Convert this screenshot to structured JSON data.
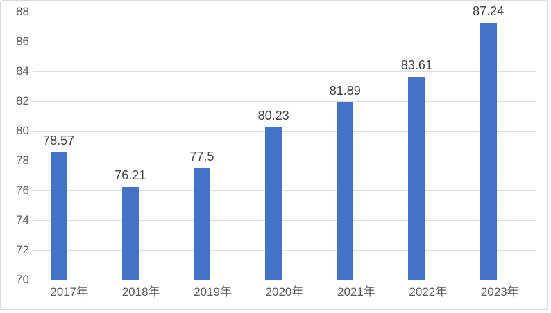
{
  "chart_data": {
    "type": "bar",
    "title": "",
    "xlabel": "",
    "ylabel": "",
    "categories": [
      "2017年",
      "2018年",
      "2019年",
      "2020年",
      "2021年",
      "2022年",
      "2023年"
    ],
    "values": [
      78.57,
      76.21,
      77.5,
      80.23,
      81.89,
      83.61,
      87.24
    ],
    "data_labels": [
      "78.57",
      "76.21",
      "77.5",
      "80.23",
      "81.89",
      "83.61",
      "87.24"
    ],
    "yticks": [
      70,
      72,
      74,
      76,
      78,
      80,
      82,
      84,
      86,
      88
    ],
    "ylim": [
      70,
      88
    ],
    "grid": true,
    "legend": false,
    "colors": {
      "bar": "#4472c4",
      "gridline": "#dcdcdc",
      "axis_line": "#bfbfbf",
      "tick_text": "#595959",
      "data_label_text": "#404040",
      "background": "#ffffff",
      "border": "#dbdbdb"
    }
  }
}
